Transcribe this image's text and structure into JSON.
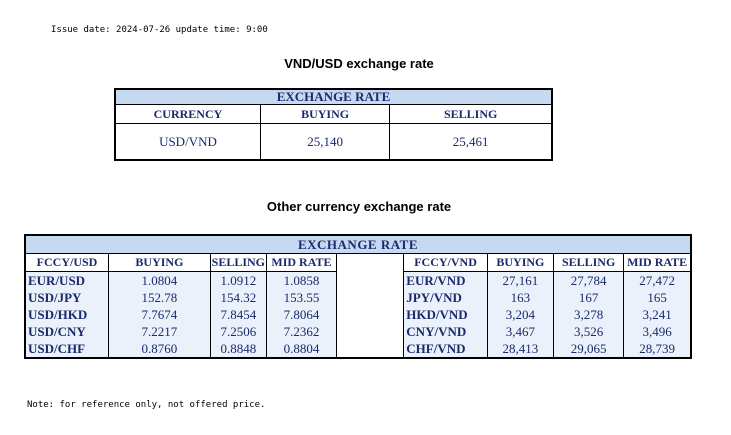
{
  "issue_line": "Issue date: 2024-07-26 update time: 9:00",
  "section1": {
    "title": "VND/USD exchange rate",
    "banner": "EXCHANGE RATE",
    "headers": [
      "CURRENCY",
      "BUYING",
      "SELLING"
    ],
    "row": {
      "currency": "USD/VND",
      "buying": "25,140",
      "selling": "25,461"
    }
  },
  "section2": {
    "title": "Other currency exchange rate",
    "banner": "EXCHANGE  RATE",
    "left_headers": [
      "FCCY/USD",
      "BUYING",
      "SELLING",
      "MID RATE"
    ],
    "right_headers": [
      "FCCY/VND",
      "BUYING",
      "SELLING",
      "MID RATE"
    ],
    "rows": [
      {
        "l_pair": "EUR/USD",
        "l_buy": "1.0804",
        "l_sell": "1.0912",
        "l_mid": "1.0858",
        "r_pair": "EUR/VND",
        "r_buy": "27,161",
        "r_sell": "27,784",
        "r_mid": "27,472"
      },
      {
        "l_pair": "USD/JPY",
        "l_buy": "152.78",
        "l_sell": "154.32",
        "l_mid": "153.55",
        "r_pair": "JPY/VND",
        "r_buy": "163",
        "r_sell": "167",
        "r_mid": "165"
      },
      {
        "l_pair": "USD/HKD",
        "l_buy": "7.7674",
        "l_sell": "7.8454",
        "l_mid": "7.8064",
        "r_pair": "HKD/VND",
        "r_buy": "3,204",
        "r_sell": "3,278",
        "r_mid": "3,241"
      },
      {
        "l_pair": "USD/CNY",
        "l_buy": "7.2217",
        "l_sell": "7.2506",
        "l_mid": "7.2362",
        "r_pair": "CNY/VND",
        "r_buy": "3,467",
        "r_sell": "3,526",
        "r_mid": "3,496"
      },
      {
        "l_pair": "USD/CHF",
        "l_buy": "0.8760",
        "l_sell": "0.8848",
        "l_mid": "0.8804",
        "r_pair": "CHF/VND",
        "r_buy": "28,413",
        "r_sell": "29,065",
        "r_mid": "28,739"
      }
    ]
  },
  "note": "Note: for reference only, not offered price.",
  "colors": {
    "banner_bg": "#c5d9f1",
    "row_shade": "#eaf1fb",
    "text": "#1a2a6c"
  }
}
